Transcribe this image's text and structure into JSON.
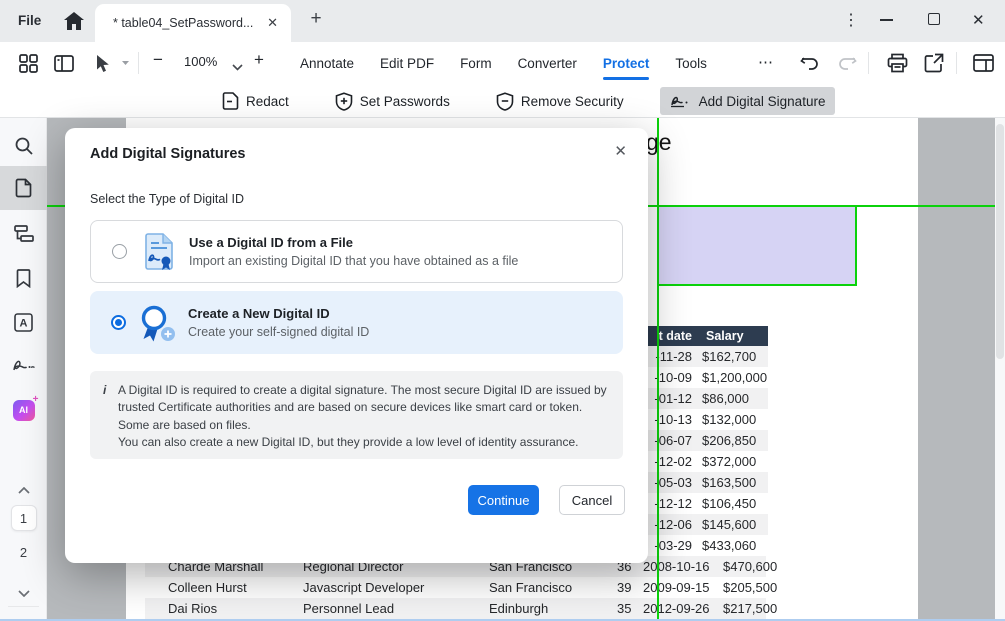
{
  "window": {
    "file_menu": "File",
    "tab_title": "* table04_SetPassword...",
    "tab_close": "✕",
    "new_tab": "+",
    "kebab": "⋮",
    "close": "✕"
  },
  "toolbar": {
    "zoom_minus": "−",
    "zoom_level": "100%",
    "zoom_plus": "+",
    "more": "⋯",
    "menus": [
      "Annotate",
      "Edit PDF",
      "Form",
      "Converter",
      "Protect",
      "Tools"
    ],
    "active_menu": "Protect"
  },
  "protect_toolbar": {
    "items": [
      "Redact",
      "Set Passwords",
      "Remove Security",
      "Add Digital Signature"
    ],
    "active_item": "Add Digital Signature"
  },
  "sidebar": {
    "pages": [
      "1",
      "2"
    ],
    "current_page": "1",
    "icons": [
      "search-icon",
      "page-thumbnails-icon",
      "outline-icon",
      "bookmark-icon",
      "stamp-a-icon",
      "signature-icon",
      "ai-icon"
    ]
  },
  "dialog": {
    "title": "Add Digital Signatures",
    "close": "✕",
    "section_label": "Select the Type of Digital ID",
    "options": [
      {
        "title": "Use a Digital ID from a File",
        "description": "Import an existing Digital ID that you have obtained as a file",
        "selected": false
      },
      {
        "title": "Create a New Digital ID",
        "description": "Create your self-signed digital ID",
        "selected": true
      }
    ],
    "info_icon": "i",
    "info_paragraph1": "A Digital ID is required to create a digital signature. The most secure Digital ID are issued by trusted Certificate authorities and are based on secure devices like smart card or token. Some are based on files.",
    "info_paragraph2": "You can also create a new Digital ID, but they provide a low level of identity assurance.",
    "continue_label": "Continue",
    "cancel_label": "Cancel"
  },
  "document": {
    "heading_visible": "ge",
    "table": {
      "partial_header": {
        "date": "t date",
        "salary": "Salary"
      },
      "partial_rows": [
        {
          "date": "-11-28",
          "salary": "$162,700"
        },
        {
          "date": "-10-09",
          "salary": "$1,200,000"
        },
        {
          "date": "-01-12",
          "salary": "$86,000"
        },
        {
          "date": "-10-13",
          "salary": "$132,000"
        },
        {
          "date": "-06-07",
          "salary": "$206,850"
        },
        {
          "date": "-12-02",
          "salary": "$372,000"
        },
        {
          "date": "-05-03",
          "salary": "$163,500"
        },
        {
          "date": "-12-12",
          "salary": "$106,450"
        },
        {
          "date": "-12-06",
          "salary": "$145,600"
        },
        {
          "date": "-03-29",
          "salary": "$433,060"
        }
      ],
      "full_rows": [
        {
          "name": "Charde Marshall",
          "position": "Regional Director",
          "office": "San Francisco",
          "age": "36",
          "start_date": "2008-10-16",
          "salary": "$470,600"
        },
        {
          "name": "Colleen Hurst",
          "position": "Javascript Developer",
          "office": "San Francisco",
          "age": "39",
          "start_date": "2009-09-15",
          "salary": "$205,500"
        },
        {
          "name": "Dai Rios",
          "position": "Personnel Lead",
          "office": "Edinburgh",
          "age": "35",
          "start_date": "2012-09-26",
          "salary": "$217,500"
        }
      ]
    }
  },
  "colors": {
    "accent_blue": "#1673e6",
    "marker_green": "#0bd20b",
    "selection_lavender": "#d0cdf3",
    "table_header_navy": "#2d3c50",
    "row_stripe": "#f1f1f2",
    "active_chip": "#d2d4d7"
  }
}
